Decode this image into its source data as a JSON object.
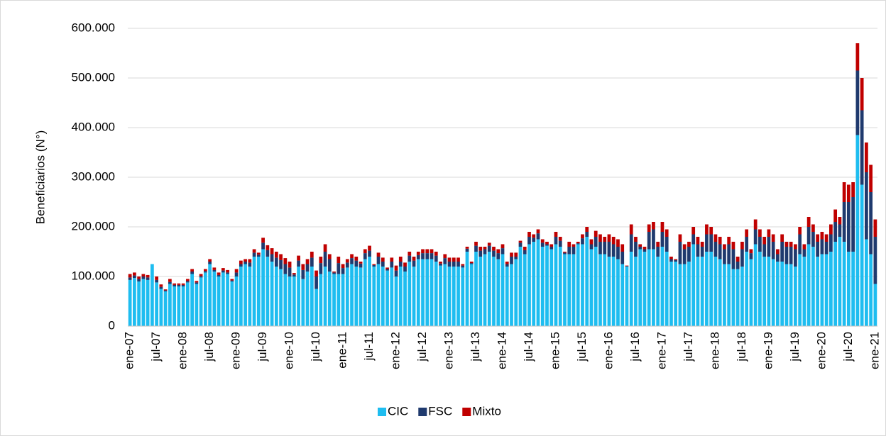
{
  "chart_data": {
    "type": "stacked-bar",
    "y_label": "Beneficiarios (N°)",
    "ylim": [
      0,
      600000
    ],
    "yticks": [
      0,
      {
        "value": 100000,
        "label": "100.000"
      },
      {
        "value": 200000,
        "label": "200.000"
      },
      {
        "value": 300000,
        "label": "300.000"
      },
      {
        "value": 400000,
        "label": "400.000"
      },
      {
        "value": 500000,
        "label": "500.000"
      },
      {
        "value": 600000,
        "label": "600.000"
      }
    ],
    "grid": true,
    "legend": "bottom",
    "categories": [
      "ene-07",
      null,
      null,
      null,
      null,
      null,
      "jul-07",
      null,
      null,
      null,
      null,
      null,
      "ene-08",
      null,
      null,
      null,
      null,
      null,
      "jul-08",
      null,
      null,
      null,
      null,
      null,
      "ene-09",
      null,
      null,
      null,
      null,
      null,
      "jul-09",
      null,
      null,
      null,
      null,
      null,
      "ene-10",
      null,
      null,
      null,
      null,
      null,
      "jul-10",
      null,
      null,
      null,
      null,
      null,
      "ene-11",
      null,
      null,
      null,
      null,
      null,
      "jul-11",
      null,
      null,
      null,
      null,
      null,
      "ene-12",
      null,
      null,
      null,
      null,
      null,
      "jul-12",
      null,
      null,
      null,
      null,
      null,
      "ene-13",
      null,
      null,
      null,
      null,
      null,
      "jul-13",
      null,
      null,
      null,
      null,
      null,
      "ene-14",
      null,
      null,
      null,
      null,
      null,
      "jul-14",
      null,
      null,
      null,
      null,
      null,
      "ene-15",
      null,
      null,
      null,
      null,
      null,
      "jul-15",
      null,
      null,
      null,
      null,
      null,
      "ene-16",
      null,
      null,
      null,
      null,
      null,
      "jul-16",
      null,
      null,
      null,
      null,
      null,
      "ene-17",
      null,
      null,
      null,
      null,
      null,
      "jul-17",
      null,
      null,
      null,
      null,
      null,
      "ene-18",
      null,
      null,
      null,
      null,
      null,
      "jul-18",
      null,
      null,
      null,
      null,
      null,
      "ene-19",
      null,
      null,
      null,
      null,
      null,
      "jul-19",
      null,
      null,
      null,
      null,
      null,
      "ene-20",
      null,
      null,
      null,
      null,
      null,
      "jul-20",
      null,
      null,
      null,
      null,
      null,
      "ene-21"
    ],
    "series": [
      {
        "name": "CIC",
        "color": "#1ebdf0",
        "values": [
          93000,
          97000,
          90000,
          95000,
          93000,
          125000,
          88000,
          75000,
          70000,
          85000,
          80000,
          80000,
          80000,
          88000,
          105000,
          85000,
          98000,
          108000,
          125000,
          110000,
          100000,
          108000,
          105000,
          90000,
          100000,
          120000,
          125000,
          120000,
          140000,
          140000,
          155000,
          140000,
          130000,
          120000,
          115000,
          105000,
          100000,
          100000,
          120000,
          95000,
          110000,
          120000,
          75000,
          105000,
          120000,
          110000,
          105000,
          105000,
          105000,
          118000,
          125000,
          120000,
          118000,
          135000,
          140000,
          120000,
          125000,
          120000,
          112000,
          118000,
          100000,
          120000,
          110000,
          130000,
          120000,
          135000,
          135000,
          135000,
          135000,
          130000,
          122000,
          125000,
          120000,
          120000,
          120000,
          118000,
          150000,
          125000,
          150000,
          140000,
          145000,
          150000,
          140000,
          135000,
          145000,
          120000,
          125000,
          135000,
          160000,
          145000,
          165000,
          170000,
          175000,
          160000,
          162000,
          155000,
          165000,
          160000,
          145000,
          145000,
          145000,
          165000,
          165000,
          180000,
          155000,
          160000,
          145000,
          145000,
          140000,
          140000,
          135000,
          125000,
          120000,
          150000,
          140000,
          155000,
          150000,
          155000,
          155000,
          140000,
          160000,
          150000,
          130000,
          130000,
          125000,
          125000,
          130000,
          165000,
          140000,
          140000,
          150000,
          150000,
          140000,
          135000,
          125000,
          125000,
          115000,
          115000,
          120000,
          150000,
          135000,
          165000,
          150000,
          140000,
          140000,
          135000,
          130000,
          130000,
          125000,
          125000,
          120000,
          145000,
          140000,
          165000,
          160000,
          140000,
          145000,
          145000,
          150000,
          170000,
          180000,
          170000,
          150000,
          150000,
          385000,
          285000,
          175000,
          145000,
          85000
        ]
      },
      {
        "name": "FSC",
        "color": "#1f3a6e",
        "values": [
          5000,
          5000,
          5000,
          5000,
          5000,
          0,
          5000,
          4000,
          2000,
          4000,
          3000,
          3000,
          3000,
          3000,
          5000,
          3000,
          3000,
          3000,
          5000,
          3000,
          3000,
          4000,
          3000,
          2000,
          8000,
          5000,
          5000,
          8000,
          8000,
          4000,
          13000,
          13000,
          15000,
          18000,
          18000,
          20000,
          18000,
          4000,
          12000,
          18000,
          15000,
          18000,
          25000,
          22000,
          30000,
          25000,
          3000,
          22000,
          12000,
          10000,
          12000,
          12000,
          8000,
          12000,
          12000,
          3000,
          15000,
          10000,
          3000,
          12000,
          12000,
          10000,
          10000,
          12000,
          12000,
          8000,
          12000,
          12000,
          12000,
          12000,
          4000,
          12000,
          10000,
          10000,
          10000,
          4000,
          6000,
          2000,
          12000,
          12000,
          10000,
          12000,
          12000,
          12000,
          12000,
          5000,
          15000,
          5000,
          8000,
          8000,
          15000,
          8000,
          12000,
          8000,
          3000,
          5000,
          15000,
          12000,
          3000,
          15000,
          15000,
          2000,
          12000,
          10000,
          10000,
          20000,
          25000,
          25000,
          30000,
          25000,
          25000,
          25000,
          1000,
          35000,
          30000,
          5000,
          5000,
          35000,
          40000,
          20000,
          30000,
          30000,
          5000,
          3000,
          45000,
          30000,
          30000,
          20000,
          25000,
          20000,
          35000,
          35000,
          30000,
          30000,
          30000,
          40000,
          40000,
          15000,
          35000,
          30000,
          12000,
          30000,
          30000,
          25000,
          40000,
          35000,
          15000,
          40000,
          35000,
          35000,
          35000,
          40000,
          15000,
          35000,
          30000,
          30000,
          30000,
          25000,
          35000,
          40000,
          25000,
          80000,
          100000,
          110000,
          130000,
          150000,
          135000,
          125000,
          95000
        ]
      },
      {
        "name": "Mixto",
        "color": "#c00000",
        "values": [
          7000,
          6000,
          5000,
          5000,
          5000,
          0,
          7000,
          5000,
          2000,
          6000,
          3000,
          3000,
          3000,
          4000,
          5000,
          3000,
          4000,
          4000,
          5000,
          5000,
          5000,
          5000,
          5000,
          3000,
          7000,
          7000,
          5000,
          7000,
          7000,
          4000,
          10000,
          10000,
          12000,
          12000,
          12000,
          12000,
          12000,
          3000,
          10000,
          12000,
          10000,
          12000,
          12000,
          13000,
          15000,
          10000,
          2000,
          13000,
          8000,
          7000,
          8000,
          8000,
          4000,
          8000,
          10000,
          2000,
          8000,
          8000,
          3000,
          8000,
          10000,
          10000,
          8000,
          8000,
          8000,
          7000,
          8000,
          8000,
          8000,
          8000,
          4000,
          8000,
          8000,
          8000,
          8000,
          3000,
          4000,
          3000,
          8000,
          8000,
          5000,
          6000,
          8000,
          8000,
          8000,
          5000,
          8000,
          8000,
          4000,
          7000,
          10000,
          7000,
          8000,
          7000,
          5000,
          5000,
          10000,
          8000,
          2000,
          10000,
          5000,
          3000,
          8000,
          10000,
          10000,
          12000,
          15000,
          10000,
          15000,
          15000,
          15000,
          15000,
          1000,
          20000,
          10000,
          5000,
          5000,
          15000,
          15000,
          10000,
          20000,
          15000,
          5000,
          2000,
          15000,
          10000,
          10000,
          15000,
          15000,
          10000,
          20000,
          15000,
          15000,
          15000,
          10000,
          15000,
          15000,
          10000,
          15000,
          15000,
          8000,
          20000,
          15000,
          15000,
          15000,
          15000,
          10000,
          15000,
          10000,
          10000,
          10000,
          15000,
          10000,
          20000,
          15000,
          15000,
          15000,
          15000,
          20000,
          25000,
          15000,
          40000,
          35000,
          30000,
          55000,
          65000,
          60000,
          55000,
          35000
        ]
      }
    ]
  }
}
